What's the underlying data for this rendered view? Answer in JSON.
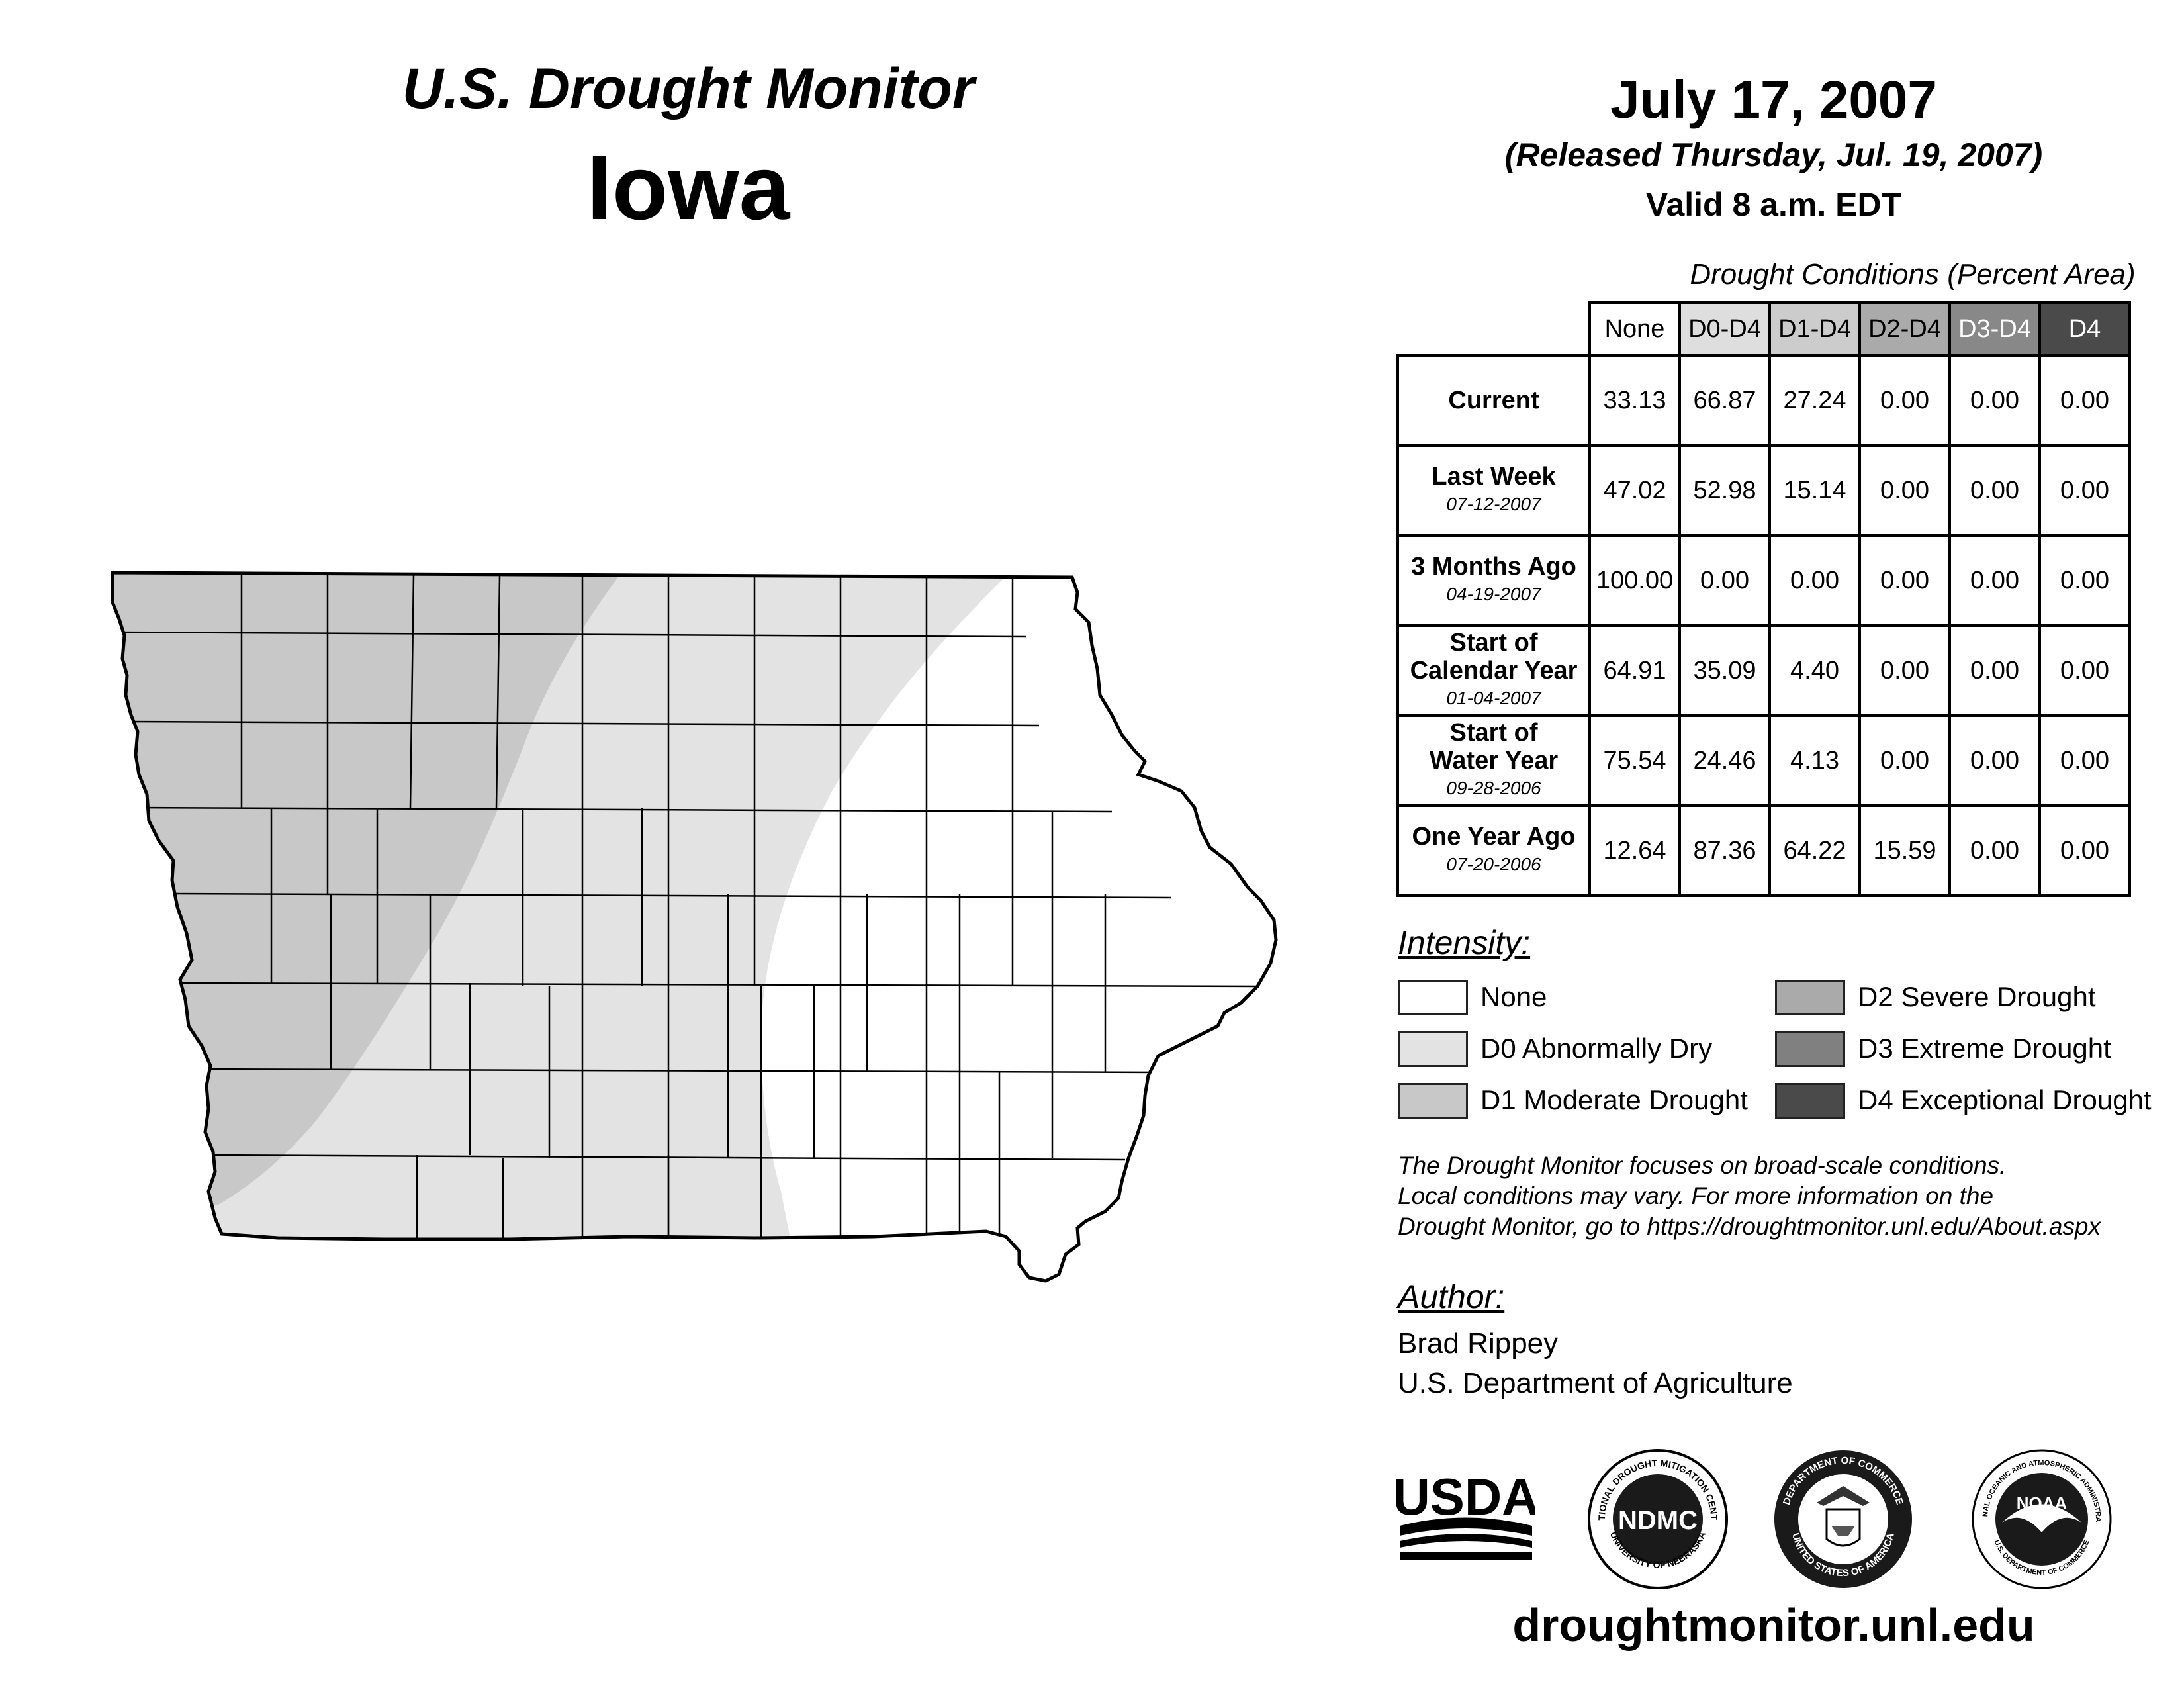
{
  "header": {
    "title": "U.S. Drought Monitor",
    "state": "Iowa",
    "date": "July 17, 2007",
    "released": "(Released Thursday, Jul. 19, 2007)",
    "valid": "Valid 8 a.m. EDT"
  },
  "table": {
    "caption": "Drought Conditions (Percent Area)",
    "columns": [
      "None",
      "D0-D4",
      "D1-D4",
      "D2-D4",
      "D3-D4",
      "D4"
    ],
    "column_colors": [
      "#ffffff",
      "#dedede",
      "#cccccc",
      "#aaaaaa",
      "#888888",
      "#4a4a4a"
    ],
    "rows": [
      {
        "label": "Current",
        "label2": "",
        "date": "",
        "values": [
          "33.13",
          "66.87",
          "27.24",
          "0.00",
          "0.00",
          "0.00"
        ]
      },
      {
        "label": "Last Week",
        "label2": "",
        "date": "07-12-2007",
        "values": [
          "47.02",
          "52.98",
          "15.14",
          "0.00",
          "0.00",
          "0.00"
        ]
      },
      {
        "label": "3 Months Ago",
        "label2": "",
        "date": "04-19-2007",
        "values": [
          "100.00",
          "0.00",
          "0.00",
          "0.00",
          "0.00",
          "0.00"
        ]
      },
      {
        "label": "Start of",
        "label2": "Calendar Year",
        "date": "01-04-2007",
        "values": [
          "64.91",
          "35.09",
          "4.40",
          "0.00",
          "0.00",
          "0.00"
        ]
      },
      {
        "label": "Start of",
        "label2": "Water Year",
        "date": "09-28-2006",
        "values": [
          "75.54",
          "24.46",
          "4.13",
          "0.00",
          "0.00",
          "0.00"
        ]
      },
      {
        "label": "One Year Ago",
        "label2": "",
        "date": "07-20-2006",
        "values": [
          "12.64",
          "87.36",
          "64.22",
          "15.59",
          "0.00",
          "0.00"
        ]
      }
    ]
  },
  "legend": {
    "title": "Intensity:",
    "items": [
      {
        "label": "None",
        "color": "#ffffff"
      },
      {
        "label": "D0 Abnormally Dry",
        "color": "#e3e3e3"
      },
      {
        "label": "D1 Moderate Drought",
        "color": "#c8c8c8"
      },
      {
        "label": "D2 Severe Drought",
        "color": "#aaaaaa"
      },
      {
        "label": "D3 Extreme Drought",
        "color": "#808080"
      },
      {
        "label": "D4 Exceptional Drought",
        "color": "#4a4a4a"
      }
    ]
  },
  "note": {
    "line1": "The Drought Monitor focuses on broad-scale conditions.",
    "line2": "Local conditions may vary. For more information on the",
    "line3": "Drought Monitor, go to https://droughtmonitor.unl.edu/About.aspx"
  },
  "author": {
    "title": "Author:",
    "name": "Brad Rippey",
    "org": "U.S. Department of Agriculture"
  },
  "logos": {
    "usda": "USDA",
    "ndmc": "NDMC",
    "ndmc_ring_top": "NATIONAL DROUGHT MITIGATION CENTER",
    "ndmc_ring_bottom": "UNIVERSITY OF NEBRASKA",
    "commerce_ring_top": "DEPARTMENT OF COMMERCE",
    "commerce_ring_bottom": "UNITED STATES OF AMERICA",
    "noaa": "NOAA",
    "noaa_ring_top": "NATIONAL OCEANIC AND ATMOSPHERIC ADMINISTRATION",
    "noaa_ring_bottom": "U.S. DEPARTMENT OF COMMERCE"
  },
  "footer": {
    "url": "droughtmonitor.unl.edu"
  }
}
